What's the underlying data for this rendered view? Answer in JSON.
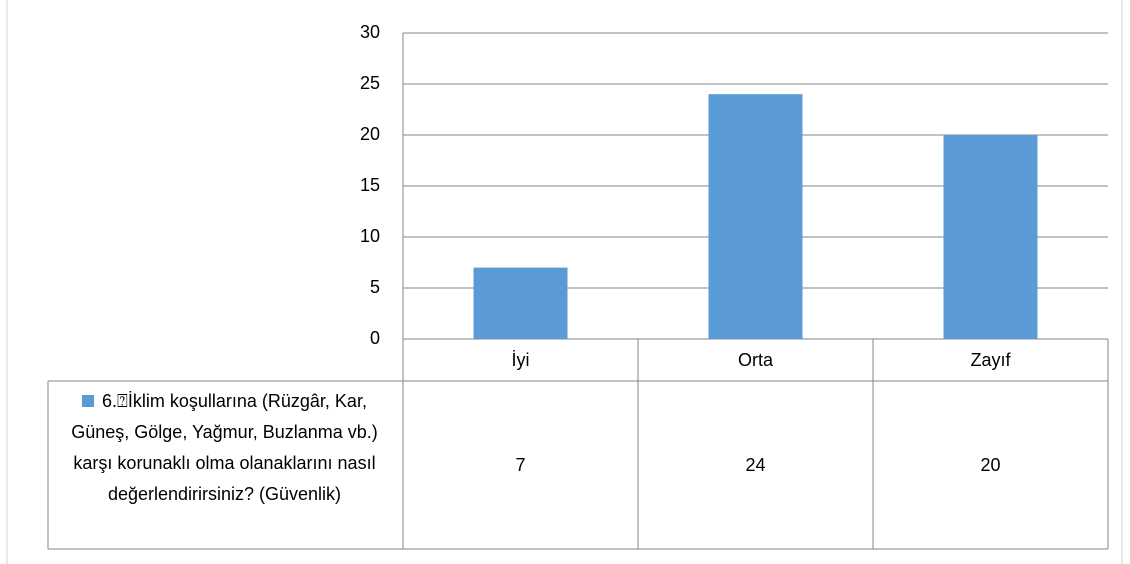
{
  "chart_data": {
    "type": "bar",
    "categories": [
      "İyi",
      "Orta",
      "Zayıf"
    ],
    "series": [
      {
        "name": "6.⍰İklim koşullarına (Rüzgâr, Kar, Güneş, Gölge, Yağmur, Buzlanma vb.) karşı korunaklı olma olanaklarını nasıl değerlendirirsiniz? (Güvenlik)",
        "color": "#5b9bd5",
        "values": [
          7,
          24,
          20
        ]
      }
    ],
    "ylim": [
      0,
      30
    ],
    "yticks": [
      0,
      5,
      10,
      15,
      20,
      25,
      30
    ],
    "grid": true,
    "data_table": true
  }
}
